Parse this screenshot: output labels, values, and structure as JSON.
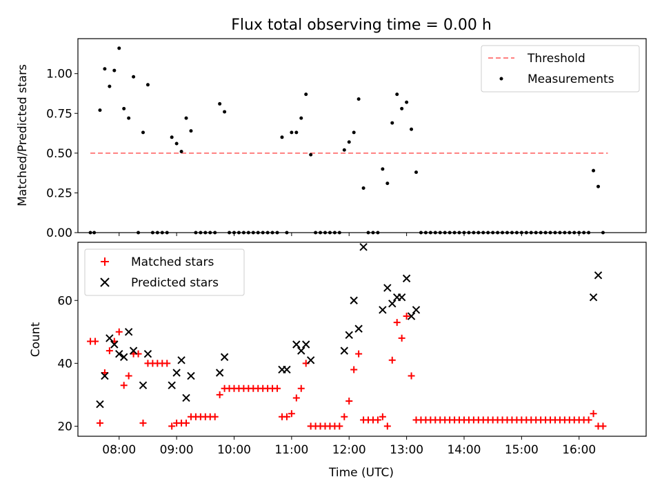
{
  "chart_data": [
    {
      "type": "scatter",
      "title": "Flux total observing time = 0.00 h",
      "xlabel": "",
      "ylabel": "Matched/Predicted stars",
      "ylim": [
        0,
        1.22
      ],
      "yticks": [
        0.0,
        0.25,
        0.5,
        0.75,
        1.0
      ],
      "ytick_labels": [
        "0.00",
        "0.25",
        "0.50",
        "0.75",
        "1.00"
      ],
      "xlim": [
        "07:17",
        "17:10"
      ],
      "grid": false,
      "legend_position": "top-right",
      "threshold": {
        "name": "Threshold",
        "value": 0.5,
        "x_start": "07:30",
        "x_end": "16:30",
        "color": "#ff7f7f"
      },
      "series": [
        {
          "name": "Measurements",
          "color": "#000000",
          "points": [
            [
              "07:30",
              0
            ],
            [
              "07:34",
              0
            ],
            [
              "07:40",
              0.77
            ],
            [
              "07:45",
              1.03
            ],
            [
              "07:50",
              0.92
            ],
            [
              "07:55",
              1.02
            ],
            [
              "08:00",
              1.16
            ],
            [
              "08:05",
              0.78
            ],
            [
              "08:10",
              0.72
            ],
            [
              "08:15",
              0.98
            ],
            [
              "08:20",
              0
            ],
            [
              "08:25",
              0.63
            ],
            [
              "08:30",
              0.93
            ],
            [
              "08:35",
              0
            ],
            [
              "08:40",
              0
            ],
            [
              "08:45",
              0
            ],
            [
              "08:50",
              0
            ],
            [
              "08:55",
              0.6
            ],
            [
              "09:00",
              0.56
            ],
            [
              "09:05",
              0.51
            ],
            [
              "09:10",
              0.72
            ],
            [
              "09:15",
              0.64
            ],
            [
              "09:20",
              0
            ],
            [
              "09:25",
              0
            ],
            [
              "09:30",
              0
            ],
            [
              "09:35",
              0
            ],
            [
              "09:40",
              0
            ],
            [
              "09:45",
              0.81
            ],
            [
              "09:50",
              0.76
            ],
            [
              "09:55",
              0
            ],
            [
              "10:00",
              0
            ],
            [
              "10:05",
              0
            ],
            [
              "10:10",
              0
            ],
            [
              "10:15",
              0
            ],
            [
              "10:20",
              0
            ],
            [
              "10:25",
              0
            ],
            [
              "10:30",
              0
            ],
            [
              "10:35",
              0
            ],
            [
              "10:40",
              0
            ],
            [
              "10:45",
              0
            ],
            [
              "10:50",
              0.6
            ],
            [
              "10:55",
              0
            ],
            [
              "11:00",
              0.63
            ],
            [
              "11:05",
              0.63
            ],
            [
              "11:10",
              0.72
            ],
            [
              "11:15",
              0.87
            ],
            [
              "11:20",
              0.49
            ],
            [
              "11:25",
              0
            ],
            [
              "11:30",
              0
            ],
            [
              "11:35",
              0
            ],
            [
              "11:40",
              0
            ],
            [
              "11:45",
              0
            ],
            [
              "11:50",
              0
            ],
            [
              "11:55",
              0.52
            ],
            [
              "12:00",
              0.57
            ],
            [
              "12:05",
              0.63
            ],
            [
              "12:10",
              0.84
            ],
            [
              "12:15",
              0.28
            ],
            [
              "12:20",
              0
            ],
            [
              "12:25",
              0
            ],
            [
              "12:30",
              0
            ],
            [
              "12:35",
              0.4
            ],
            [
              "12:40",
              0.31
            ],
            [
              "12:45",
              0.69
            ],
            [
              "12:50",
              0.87
            ],
            [
              "12:55",
              0.78
            ],
            [
              "13:00",
              0.82
            ],
            [
              "13:05",
              0.65
            ],
            [
              "13:10",
              0.38
            ],
            [
              "13:15",
              0
            ],
            [
              "13:20",
              0
            ],
            [
              "13:25",
              0
            ],
            [
              "13:30",
              0
            ],
            [
              "13:35",
              0
            ],
            [
              "13:40",
              0
            ],
            [
              "13:45",
              0
            ],
            [
              "13:50",
              0
            ],
            [
              "13:55",
              0
            ],
            [
              "14:00",
              0
            ],
            [
              "14:05",
              0
            ],
            [
              "14:10",
              0
            ],
            [
              "14:15",
              0
            ],
            [
              "14:20",
              0
            ],
            [
              "14:25",
              0
            ],
            [
              "14:30",
              0
            ],
            [
              "14:35",
              0
            ],
            [
              "14:40",
              0
            ],
            [
              "14:45",
              0
            ],
            [
              "14:50",
              0
            ],
            [
              "14:55",
              0
            ],
            [
              "15:00",
              0
            ],
            [
              "15:05",
              0
            ],
            [
              "15:10",
              0
            ],
            [
              "15:15",
              0
            ],
            [
              "15:20",
              0
            ],
            [
              "15:25",
              0
            ],
            [
              "15:30",
              0
            ],
            [
              "15:35",
              0
            ],
            [
              "15:40",
              0
            ],
            [
              "15:45",
              0
            ],
            [
              "15:50",
              0
            ],
            [
              "15:55",
              0
            ],
            [
              "16:00",
              0
            ],
            [
              "16:05",
              0
            ],
            [
              "16:10",
              0
            ],
            [
              "16:15",
              0.39
            ],
            [
              "16:20",
              0.29
            ],
            [
              "16:25",
              0
            ]
          ]
        }
      ]
    },
    {
      "type": "scatter",
      "title": "",
      "xlabel": "Time (UTC)",
      "ylabel": "Count",
      "ylim": [
        16.8,
        78.5
      ],
      "yticks": [
        20,
        40,
        60
      ],
      "ytick_labels": [
        "20",
        "40",
        "60"
      ],
      "xlim": [
        "07:17",
        "17:10"
      ],
      "xticks": [
        "08:00",
        "09:00",
        "10:00",
        "11:00",
        "12:00",
        "13:00",
        "14:00",
        "15:00",
        "16:00"
      ],
      "grid": false,
      "legend_position": "top-left",
      "series": [
        {
          "name": "Matched stars",
          "marker": "plus",
          "color": "#ff0000",
          "points": [
            [
              "07:30",
              47
            ],
            [
              "07:35",
              47
            ],
            [
              "07:40",
              21
            ],
            [
              "07:45",
              37
            ],
            [
              "07:50",
              44
            ],
            [
              "07:55",
              47
            ],
            [
              "08:00",
              50
            ],
            [
              "08:05",
              33
            ],
            [
              "08:10",
              36
            ],
            [
              "08:15",
              43
            ],
            [
              "08:20",
              43
            ],
            [
              "08:25",
              21
            ],
            [
              "08:30",
              40
            ],
            [
              "08:35",
              40
            ],
            [
              "08:40",
              40
            ],
            [
              "08:45",
              40
            ],
            [
              "08:50",
              40
            ],
            [
              "08:55",
              20
            ],
            [
              "09:00",
              21
            ],
            [
              "09:05",
              21
            ],
            [
              "09:10",
              21
            ],
            [
              "09:15",
              23
            ],
            [
              "09:20",
              23
            ],
            [
              "09:25",
              23
            ],
            [
              "09:30",
              23
            ],
            [
              "09:35",
              23
            ],
            [
              "09:40",
              23
            ],
            [
              "09:45",
              30
            ],
            [
              "09:50",
              32
            ],
            [
              "09:55",
              32
            ],
            [
              "10:00",
              32
            ],
            [
              "10:05",
              32
            ],
            [
              "10:10",
              32
            ],
            [
              "10:15",
              32
            ],
            [
              "10:20",
              32
            ],
            [
              "10:25",
              32
            ],
            [
              "10:30",
              32
            ],
            [
              "10:35",
              32
            ],
            [
              "10:40",
              32
            ],
            [
              "10:45",
              32
            ],
            [
              "10:50",
              23
            ],
            [
              "10:55",
              23
            ],
            [
              "11:00",
              24
            ],
            [
              "11:05",
              29
            ],
            [
              "11:10",
              32
            ],
            [
              "11:15",
              40
            ],
            [
              "11:20",
              20
            ],
            [
              "11:25",
              20
            ],
            [
              "11:30",
              20
            ],
            [
              "11:35",
              20
            ],
            [
              "11:40",
              20
            ],
            [
              "11:45",
              20
            ],
            [
              "11:50",
              20
            ],
            [
              "11:55",
              23
            ],
            [
              "12:00",
              28
            ],
            [
              "12:05",
              38
            ],
            [
              "12:10",
              43
            ],
            [
              "12:15",
              22
            ],
            [
              "12:20",
              22
            ],
            [
              "12:25",
              22
            ],
            [
              "12:30",
              22
            ],
            [
              "12:35",
              23
            ],
            [
              "12:40",
              20
            ],
            [
              "12:45",
              41
            ],
            [
              "12:50",
              53
            ],
            [
              "12:55",
              48
            ],
            [
              "13:00",
              55
            ],
            [
              "13:05",
              36
            ],
            [
              "13:10",
              22
            ],
            [
              "13:15",
              22
            ],
            [
              "13:20",
              22
            ],
            [
              "13:25",
              22
            ],
            [
              "13:30",
              22
            ],
            [
              "13:35",
              22
            ],
            [
              "13:40",
              22
            ],
            [
              "13:45",
              22
            ],
            [
              "13:50",
              22
            ],
            [
              "13:55",
              22
            ],
            [
              "14:00",
              22
            ],
            [
              "14:05",
              22
            ],
            [
              "14:10",
              22
            ],
            [
              "14:15",
              22
            ],
            [
              "14:20",
              22
            ],
            [
              "14:25",
              22
            ],
            [
              "14:30",
              22
            ],
            [
              "14:35",
              22
            ],
            [
              "14:40",
              22
            ],
            [
              "14:45",
              22
            ],
            [
              "14:50",
              22
            ],
            [
              "14:55",
              22
            ],
            [
              "15:00",
              22
            ],
            [
              "15:05",
              22
            ],
            [
              "15:10",
              22
            ],
            [
              "15:15",
              22
            ],
            [
              "15:20",
              22
            ],
            [
              "15:25",
              22
            ],
            [
              "15:30",
              22
            ],
            [
              "15:35",
              22
            ],
            [
              "15:40",
              22
            ],
            [
              "15:45",
              22
            ],
            [
              "15:50",
              22
            ],
            [
              "15:55",
              22
            ],
            [
              "16:00",
              22
            ],
            [
              "16:05",
              22
            ],
            [
              "16:10",
              22
            ],
            [
              "16:15",
              24
            ],
            [
              "16:20",
              20
            ],
            [
              "16:25",
              20
            ]
          ]
        },
        {
          "name": "Predicted stars",
          "marker": "x",
          "color": "#000000",
          "points": [
            [
              "07:40",
              27
            ],
            [
              "07:45",
              36
            ],
            [
              "07:50",
              48
            ],
            [
              "07:55",
              46
            ],
            [
              "08:00",
              43
            ],
            [
              "08:05",
              42
            ],
            [
              "08:10",
              50
            ],
            [
              "08:15",
              44
            ],
            [
              "08:25",
              33
            ],
            [
              "08:30",
              43
            ],
            [
              "08:55",
              33
            ],
            [
              "09:00",
              37
            ],
            [
              "09:05",
              41
            ],
            [
              "09:10",
              29
            ],
            [
              "09:15",
              36
            ],
            [
              "09:45",
              37
            ],
            [
              "09:50",
              42
            ],
            [
              "10:50",
              38
            ],
            [
              "10:55",
              38
            ],
            [
              "11:05",
              46
            ],
            [
              "11:10",
              44
            ],
            [
              "11:15",
              46
            ],
            [
              "11:20",
              41
            ],
            [
              "11:55",
              44
            ],
            [
              "12:00",
              49
            ],
            [
              "12:05",
              60
            ],
            [
              "12:10",
              51
            ],
            [
              "12:15",
              77
            ],
            [
              "12:35",
              57
            ],
            [
              "12:40",
              64
            ],
            [
              "12:45",
              59
            ],
            [
              "12:50",
              61
            ],
            [
              "12:55",
              61
            ],
            [
              "13:00",
              67
            ],
            [
              "13:05",
              55
            ],
            [
              "13:10",
              57
            ],
            [
              "16:15",
              61
            ],
            [
              "16:20",
              68
            ]
          ]
        }
      ]
    }
  ]
}
